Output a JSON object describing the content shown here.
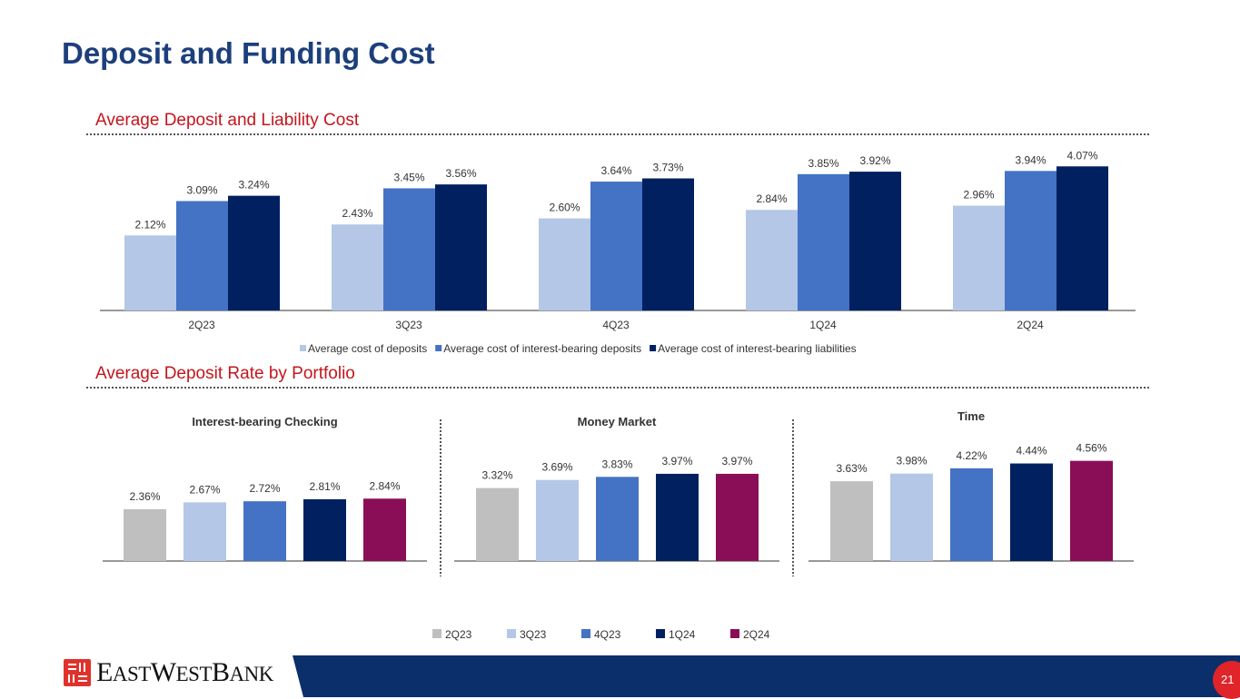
{
  "page": {
    "title": "Deposit and Funding Cost",
    "number": "21",
    "logo": "EASTWESTBANK"
  },
  "colors": {
    "gray": "#bfbfbf",
    "lightblue": "#b4c7e7",
    "blue": "#4472c4",
    "navy": "#002060",
    "maroon": "#8a0e57"
  },
  "chart_data": [
    {
      "type": "bar",
      "title": "Average Deposit and Liability Cost",
      "categories": [
        "2Q23",
        "3Q23",
        "4Q23",
        "1Q24",
        "2Q24"
      ],
      "series": [
        {
          "name": "Average cost of deposits",
          "color": "#b4c7e7",
          "values": [
            2.12,
            2.43,
            2.6,
            2.84,
            2.96
          ],
          "labels": [
            "2.12%",
            "2.43%",
            "2.60%",
            "2.84%",
            "2.96%"
          ]
        },
        {
          "name": "Average cost of interest-bearing deposits",
          "color": "#4472c4",
          "values": [
            3.09,
            3.45,
            3.64,
            3.85,
            3.94
          ],
          "labels": [
            "3.09%",
            "3.45%",
            "3.64%",
            "3.85%",
            "3.94%"
          ]
        },
        {
          "name": "Average cost of interest-bearing liabilities",
          "color": "#002060",
          "values": [
            3.24,
            3.56,
            3.73,
            3.92,
            4.07
          ],
          "labels": [
            "3.24%",
            "3.56%",
            "3.73%",
            "3.92%",
            "4.07%"
          ]
        }
      ],
      "legend": "bottom"
    },
    {
      "type": "bar",
      "section": "Average Deposit Rate by Portfolio",
      "title": "Interest-bearing Checking",
      "categories": [
        "2Q23",
        "3Q23",
        "4Q23",
        "1Q24",
        "2Q24"
      ],
      "values": [
        2.36,
        2.67,
        2.72,
        2.81,
        2.84
      ],
      "labels": [
        "2.36%",
        "2.67%",
        "2.72%",
        "2.81%",
        "2.84%"
      ]
    },
    {
      "type": "bar",
      "title": "Money Market",
      "categories": [
        "2Q23",
        "3Q23",
        "4Q23",
        "1Q24",
        "2Q24"
      ],
      "values": [
        3.32,
        3.69,
        3.83,
        3.97,
        3.97
      ],
      "labels": [
        "3.32%",
        "3.69%",
        "3.83%",
        "3.97%",
        "3.97%"
      ]
    },
    {
      "type": "bar",
      "title": "Time",
      "categories": [
        "2Q23",
        "3Q23",
        "4Q23",
        "1Q24",
        "2Q24"
      ],
      "values": [
        3.63,
        3.98,
        4.22,
        4.44,
        4.56
      ],
      "labels": [
        "3.63%",
        "3.98%",
        "4.22%",
        "4.44%",
        "4.56%"
      ]
    }
  ],
  "portfolio_legend": [
    {
      "name": "2Q23",
      "color": "#bfbfbf"
    },
    {
      "name": "3Q23",
      "color": "#b4c7e7"
    },
    {
      "name": "4Q23",
      "color": "#4472c4"
    },
    {
      "name": "1Q24",
      "color": "#002060"
    },
    {
      "name": "2Q24",
      "color": "#8a0e57"
    }
  ]
}
